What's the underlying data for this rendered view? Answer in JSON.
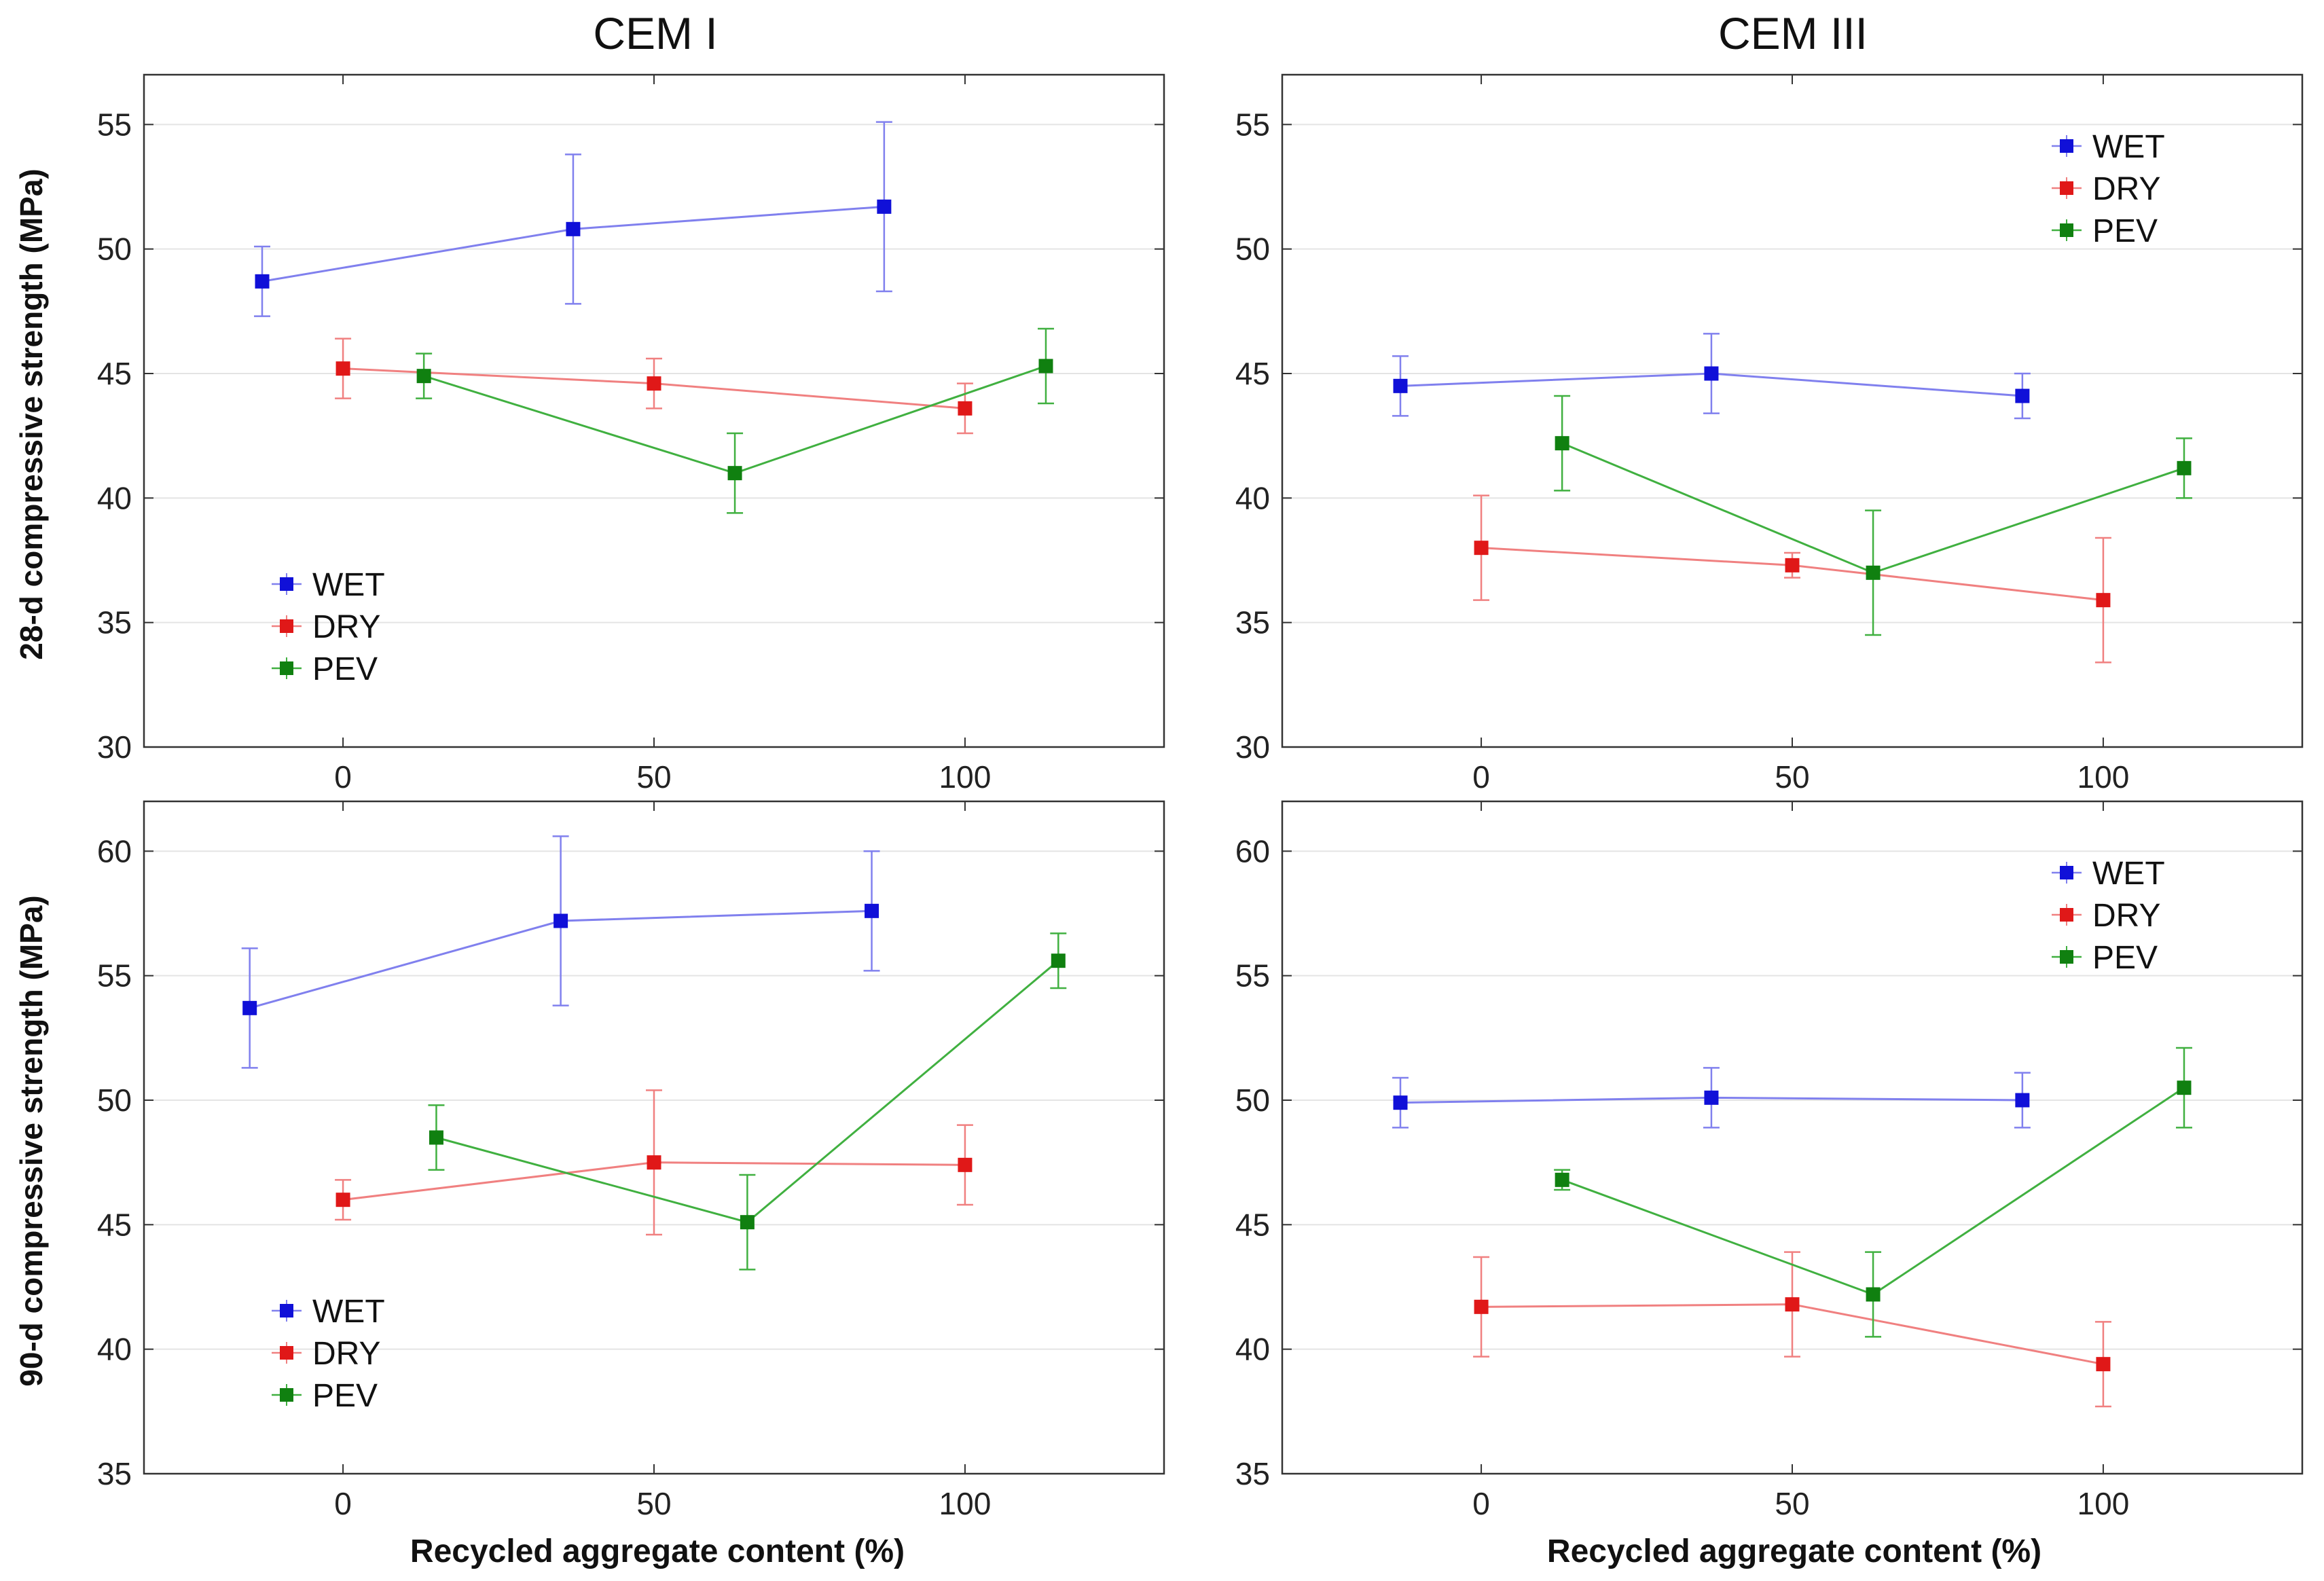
{
  "figure": {
    "column_titles": [
      "CEM I",
      "CEM III"
    ],
    "row_ylabels": [
      "28-d compressive strength (MPa)",
      "90-d compressive strength (MPa)"
    ],
    "xlabel": "Recycled aggregate content (%)"
  },
  "colors": {
    "WET": "#1010d8",
    "DRY": "#e01818",
    "PEV": "#108010",
    "WET_line": "#8080ee",
    "DRY_line": "#f08080",
    "PEV_line": "#40b040",
    "grid": "#e4e4e4",
    "axis": "#333333"
  },
  "chart_data": [
    {
      "type": "line",
      "panel": "top-left",
      "column": "CEM I",
      "ylabel": "28-d compressive strength (MPa)",
      "xlabel": "",
      "xlim": [
        -32,
        132
      ],
      "ylim": [
        30,
        57
      ],
      "xticks": [
        0,
        50,
        100
      ],
      "yticks": [
        30,
        35,
        40,
        45,
        50,
        55
      ],
      "grid": true,
      "legend_position": "lower-left",
      "series": [
        {
          "name": "WET",
          "x": [
            -13,
            37,
            87
          ],
          "y": [
            48.7,
            50.8,
            51.7
          ],
          "err": [
            1.4,
            3.0,
            3.4
          ]
        },
        {
          "name": "DRY",
          "x": [
            0,
            50,
            100
          ],
          "y": [
            45.2,
            44.6,
            43.6
          ],
          "err": [
            1.2,
            1.0,
            1.0
          ]
        },
        {
          "name": "PEV",
          "x": [
            13,
            63,
            113
          ],
          "y": [
            44.9,
            41.0,
            45.3
          ],
          "err": [
            0.9,
            1.6,
            1.5
          ]
        }
      ]
    },
    {
      "type": "line",
      "panel": "top-right",
      "column": "CEM III",
      "ylabel": "",
      "xlabel": "",
      "xlim": [
        -32,
        132
      ],
      "ylim": [
        30,
        57
      ],
      "xticks": [
        0,
        50,
        100
      ],
      "yticks": [
        30,
        35,
        40,
        45,
        50,
        55
      ],
      "grid": true,
      "legend_position": "upper-right",
      "series": [
        {
          "name": "WET",
          "x": [
            -13,
            37,
            87
          ],
          "y": [
            44.5,
            45.0,
            44.1
          ],
          "err": [
            1.2,
            1.6,
            0.9
          ]
        },
        {
          "name": "DRY",
          "x": [
            0,
            50,
            100
          ],
          "y": [
            38.0,
            37.3,
            35.9
          ],
          "err": [
            2.1,
            0.5,
            2.5
          ]
        },
        {
          "name": "PEV",
          "x": [
            13,
            63,
            113
          ],
          "y": [
            42.2,
            37.0,
            41.2
          ],
          "err": [
            1.9,
            2.5,
            1.2
          ]
        }
      ]
    },
    {
      "type": "line",
      "panel": "bottom-left",
      "column": "CEM I",
      "ylabel": "90-d compressive strength (MPa)",
      "xlabel": "Recycled aggregate content (%)",
      "xlim": [
        -32,
        132
      ],
      "ylim": [
        35,
        62
      ],
      "xticks": [
        0,
        50,
        100
      ],
      "yticks": [
        35,
        40,
        45,
        50,
        55,
        60
      ],
      "grid": true,
      "legend_position": "lower-left",
      "series": [
        {
          "name": "WET",
          "x": [
            -15,
            35,
            85
          ],
          "y": [
            53.7,
            57.2,
            57.6
          ],
          "err": [
            2.4,
            3.4,
            2.4
          ]
        },
        {
          "name": "DRY",
          "x": [
            0,
            50,
            100
          ],
          "y": [
            46.0,
            47.5,
            47.4
          ],
          "err": [
            0.8,
            2.9,
            1.6
          ]
        },
        {
          "name": "PEV",
          "x": [
            15,
            65,
            115
          ],
          "y": [
            48.5,
            45.1,
            55.6
          ],
          "err": [
            1.3,
            1.9,
            1.1
          ]
        }
      ]
    },
    {
      "type": "line",
      "panel": "bottom-right",
      "column": "CEM III",
      "ylabel": "",
      "xlabel": "Recycled aggregate content (%)",
      "xlim": [
        -32,
        132
      ],
      "ylim": [
        35,
        62
      ],
      "xticks": [
        0,
        50,
        100
      ],
      "yticks": [
        35,
        40,
        45,
        50,
        55,
        60
      ],
      "grid": true,
      "legend_position": "upper-right",
      "series": [
        {
          "name": "WET",
          "x": [
            -13,
            37,
            87
          ],
          "y": [
            49.9,
            50.1,
            50.0
          ],
          "err": [
            1.0,
            1.2,
            1.1
          ]
        },
        {
          "name": "DRY",
          "x": [
            0,
            50,
            100
          ],
          "y": [
            41.7,
            41.8,
            39.4
          ],
          "err": [
            2.0,
            2.1,
            1.7
          ]
        },
        {
          "name": "PEV",
          "x": [
            13,
            63,
            113
          ],
          "y": [
            46.8,
            42.2,
            50.5
          ],
          "err": [
            0.4,
            1.7,
            1.6
          ]
        }
      ]
    }
  ]
}
